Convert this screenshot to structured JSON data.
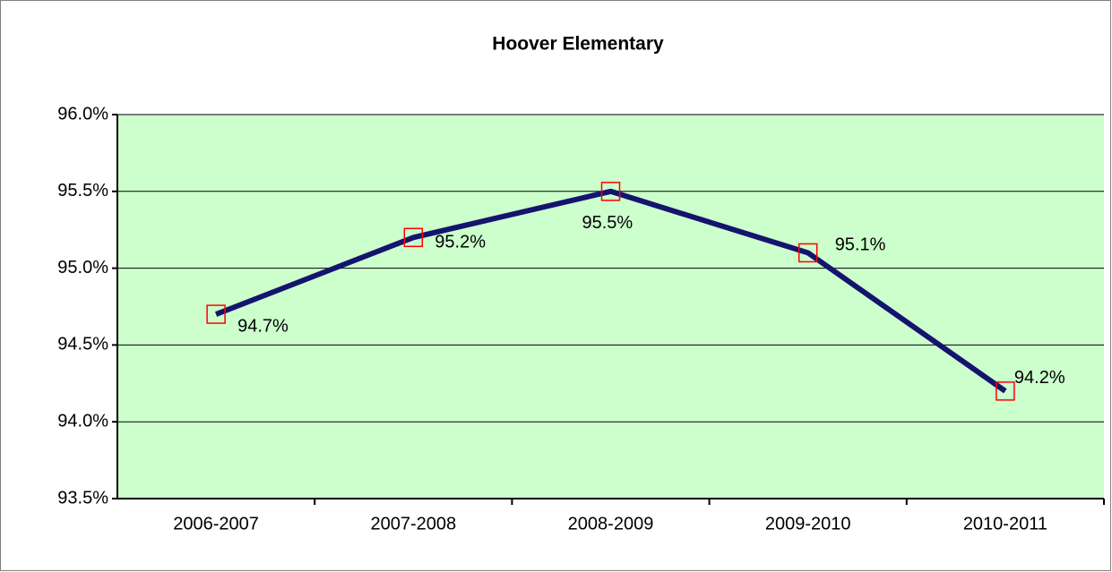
{
  "chart_data": {
    "type": "line",
    "title": "Hoover Elementary",
    "categories": [
      "2006-2007",
      "2007-2008",
      "2008-2009",
      "2009-2010",
      "2010-2011"
    ],
    "series": [
      {
        "name": "Hoover Elementary",
        "color": "#14146e",
        "marker_color": "#ff0000",
        "values": [
          94.7,
          95.2,
          95.5,
          95.1,
          94.2
        ],
        "value_labels": [
          "94.7%",
          "95.2%",
          "95.5%",
          "95.1%",
          "94.2%"
        ]
      }
    ],
    "ylim": [
      93.5,
      96.0
    ],
    "yticks": [
      {
        "value": 93.5,
        "label": "93.5%"
      },
      {
        "value": 94.0,
        "label": "94.0%"
      },
      {
        "value": 94.5,
        "label": "94.5%"
      },
      {
        "value": 95.0,
        "label": "95.0%"
      },
      {
        "value": 95.5,
        "label": "95.5%"
      },
      {
        "value": 96.0,
        "label": "96.0%"
      }
    ],
    "grid": true,
    "plot_background": "#ccffcc"
  }
}
